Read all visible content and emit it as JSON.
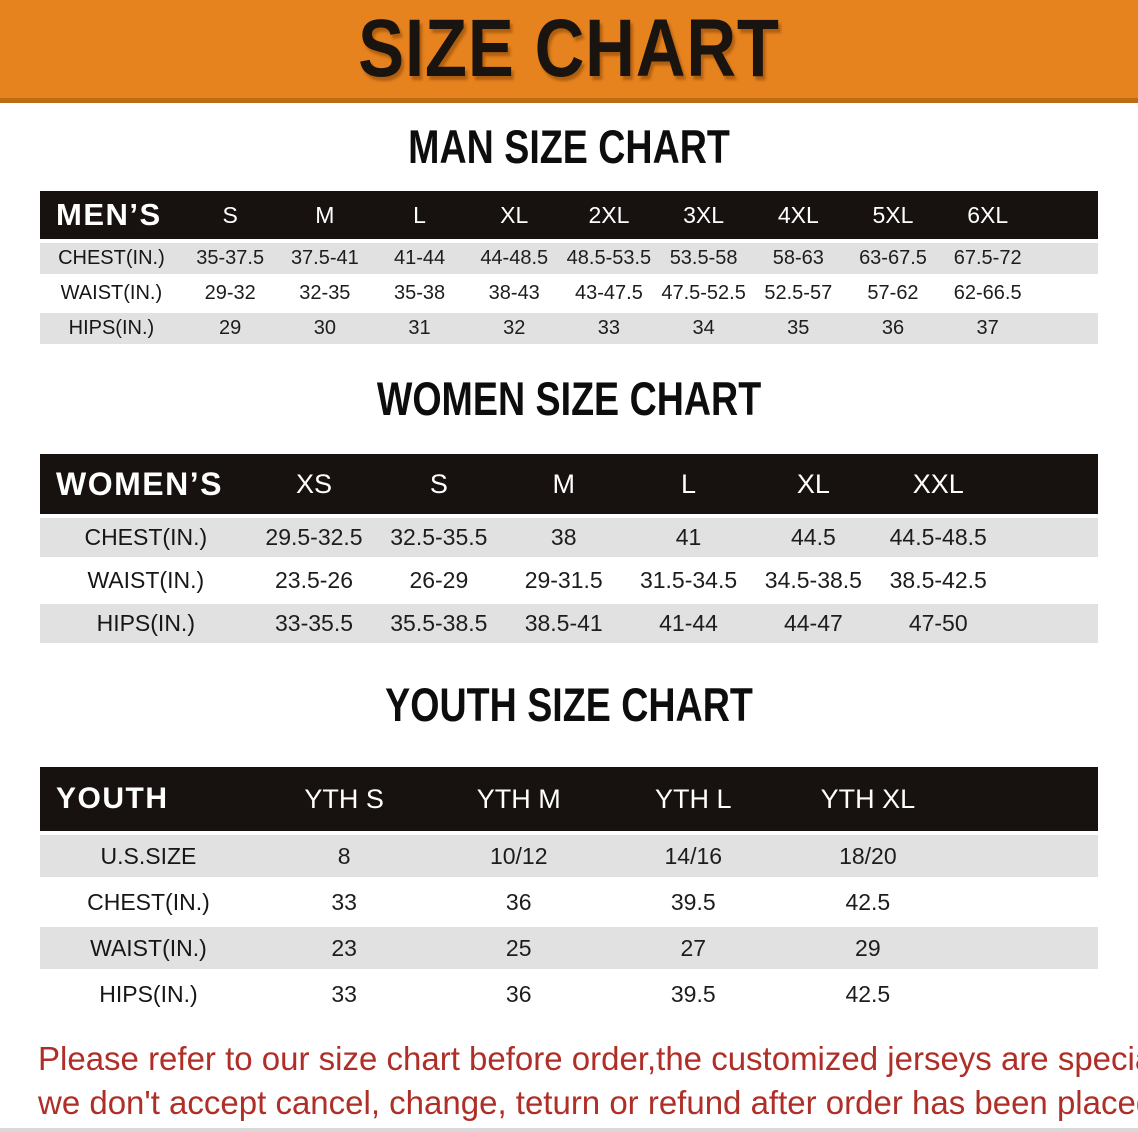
{
  "banner": {
    "title": "SIZE CHART"
  },
  "colors": {
    "banner_orange": "#E6831E",
    "banner_edge": "#BC6C12",
    "table_header_black": "#17120F",
    "row_gray": "#E1E1E1",
    "disclaimer_red": "#AF2F28"
  },
  "chart_data": [
    {
      "type": "table",
      "title": "MAN SIZE CHART",
      "label": "MEN’S",
      "columns": [
        "S",
        "M",
        "L",
        "XL",
        "2XL",
        "3XL",
        "4XL",
        "5XL",
        "6XL"
      ],
      "rows": [
        {
          "label": "CHEST(IN.)",
          "values": [
            "35-37.5",
            "37.5-41",
            "41-44",
            "44-48.5",
            "48.5-53.5",
            "53.5-58",
            "58-63",
            "63-67.5",
            "67.5-72"
          ]
        },
        {
          "label": "WAIST(IN.)",
          "values": [
            "29-32",
            "32-35",
            "35-38",
            "38-43",
            "43-47.5",
            "47.5-52.5",
            "52.5-57",
            "57-62",
            "62-66.5"
          ]
        },
        {
          "label": "HIPS(IN.)",
          "values": [
            "29",
            "30",
            "31",
            "32",
            "33",
            "34",
            "35",
            "36",
            "37"
          ]
        }
      ]
    },
    {
      "type": "table",
      "title": "WOMEN SIZE CHART",
      "label": "WOMEN’S",
      "columns": [
        "XS",
        "S",
        "M",
        "L",
        "XL",
        "XXL"
      ],
      "rows": [
        {
          "label": "CHEST(IN.)",
          "values": [
            "29.5-32.5",
            "32.5-35.5",
            "38",
            "41",
            "44.5",
            "44.5-48.5"
          ]
        },
        {
          "label": "WAIST(IN.)",
          "values": [
            "23.5-26",
            "26-29",
            "29-31.5",
            "31.5-34.5",
            "34.5-38.5",
            "38.5-42.5"
          ]
        },
        {
          "label": "HIPS(IN.)",
          "values": [
            "33-35.5",
            "35.5-38.5",
            "38.5-41",
            "41-44",
            "44-47",
            "47-50"
          ]
        }
      ]
    },
    {
      "type": "table",
      "title": "YOUTH SIZE CHART",
      "label": "YOUTH",
      "columns": [
        "YTH S",
        "YTH M",
        "YTH L",
        "YTH XL"
      ],
      "rows": [
        {
          "label": "U.S.SIZE",
          "values": [
            "8",
            "10/12",
            "14/16",
            "18/20"
          ]
        },
        {
          "label": "CHEST(IN.)",
          "values": [
            "33",
            "36",
            "39.5",
            "42.5"
          ]
        },
        {
          "label": "WAIST(IN.)",
          "values": [
            "23",
            "25",
            "27",
            "29"
          ]
        },
        {
          "label": "HIPS(IN.)",
          "values": [
            "33",
            "36",
            "39.5",
            "42.5"
          ]
        }
      ]
    }
  ],
  "disclaimer": {
    "line1": "Please refer to our size chart before order,the customized jerseys are special products,",
    "line2": "we don't accept cancel, change, teturn or refund after order has been placed!"
  }
}
